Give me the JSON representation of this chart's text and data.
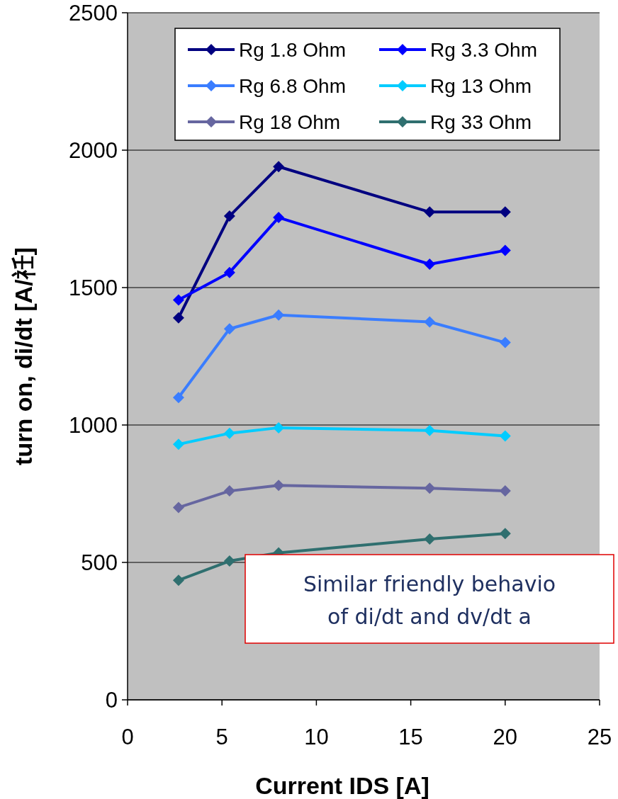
{
  "chart_data": {
    "type": "line",
    "xlabel": "Current IDS [A]",
    "ylabel": "turn on, di/dt [A/祍]",
    "xlim": [
      0,
      25
    ],
    "xticks": [
      0,
      5,
      10,
      15,
      20,
      25
    ],
    "ylim": [
      0,
      2500
    ],
    "yticks": [
      0,
      500,
      1000,
      1500,
      2000,
      2500
    ],
    "grid": "y",
    "legend": "top",
    "marker": "diamond",
    "line_style": "solid",
    "annotations": [
      "Similar friendly behavio",
      "of di/dt and dv/dt a"
    ],
    "series": [
      {
        "name": "Rg 1.8 Ohm",
        "color": "#000080",
        "x": [
          2.7,
          5.4,
          8,
          16,
          20
        ],
        "values": [
          1390,
          1760,
          1940,
          1775,
          1775
        ]
      },
      {
        "name": "Rg 3.3 Ohm",
        "color": "#0000ff",
        "x": [
          2.7,
          5.4,
          8,
          16,
          20
        ],
        "values": [
          1455,
          1555,
          1755,
          1585,
          1635
        ]
      },
      {
        "name": "Rg 6.8 Ohm",
        "color": "#3a7dff",
        "x": [
          2.7,
          5.4,
          8,
          16,
          20
        ],
        "values": [
          1100,
          1350,
          1400,
          1375,
          1300
        ]
      },
      {
        "name": "Rg 13 Ohm",
        "color": "#00ccff",
        "x": [
          2.7,
          5.4,
          8,
          16,
          20
        ],
        "values": [
          930,
          970,
          990,
          980,
          960
        ]
      },
      {
        "name": "Rg 18 Ohm",
        "color": "#6666a0",
        "x": [
          2.7,
          5.4,
          8,
          16,
          20
        ],
        "values": [
          700,
          760,
          780,
          770,
          760
        ]
      },
      {
        "name": "Rg 33 Ohm",
        "color": "#2f6f6f",
        "x": [
          2.7,
          5.4,
          8,
          16,
          20
        ],
        "values": [
          435,
          505,
          535,
          585,
          605
        ]
      }
    ]
  }
}
